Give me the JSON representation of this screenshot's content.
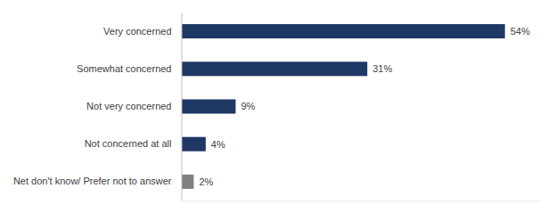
{
  "chart_data": {
    "type": "bar",
    "orientation": "horizontal",
    "categories": [
      "Very concerned",
      "Somewhat concerned",
      "Not very concerned",
      "Not concerned at all",
      "Net don't know/ Prefer not to answer"
    ],
    "values": [
      54,
      31,
      9,
      4,
      2
    ],
    "value_labels": [
      "54%",
      "31%",
      "9%",
      "4%",
      "2%"
    ],
    "data_labels": true,
    "colors": [
      "#1f3864",
      "#1f3864",
      "#1f3864",
      "#1f3864",
      "#7f7f7f"
    ],
    "xlim": [
      0,
      60
    ],
    "tick_labels": "y"
  }
}
